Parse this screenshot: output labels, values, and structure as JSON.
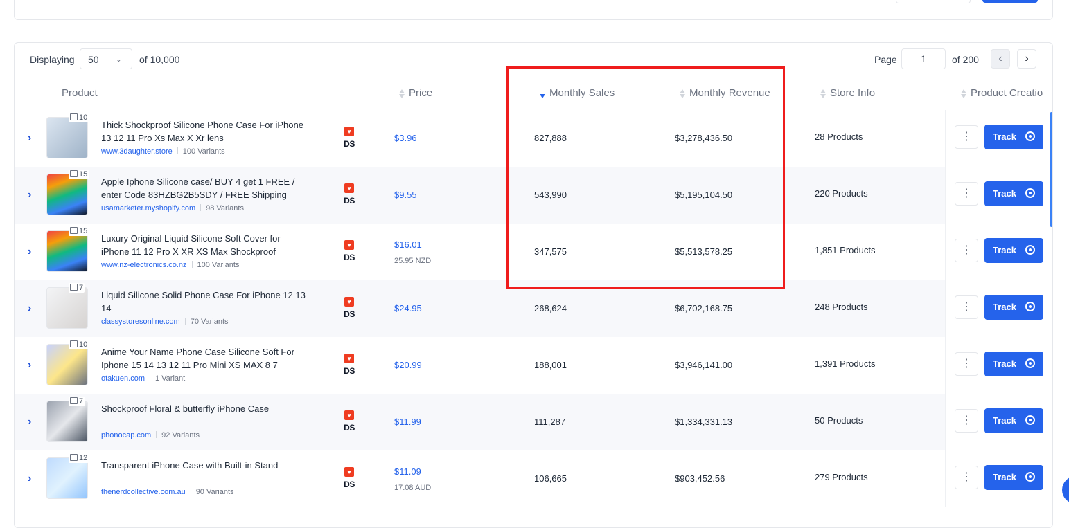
{
  "toolbar": {
    "displaying_label": "Displaying",
    "page_size": "50",
    "of_total": "of 10,000",
    "page_label": "Page",
    "page_value": "1",
    "of_pages": "of 200"
  },
  "columns": {
    "product": "Product",
    "price": "Price",
    "monthly_sales": "Monthly Sales",
    "monthly_revenue": "Monthly Revenue",
    "store_info": "Store Info",
    "product_creation": "Product Creatio"
  },
  "track_label": "Track",
  "source_badges": {
    "ds": "DS"
  },
  "rows": [
    {
      "title": "Thick Shockproof Silicone Phone Case For iPhone 13 12 11 Pro Xs Max X Xr lens",
      "store": "www.3daughter.store",
      "variants": "100 Variants",
      "image_count": "10",
      "price": "$3.96",
      "price_sub": "",
      "sales": "827,888",
      "revenue": "$3,278,436.50",
      "store_info": "28 Products"
    },
    {
      "title": "Apple Iphone Silicone case/ BUY 4 get 1 FREE / enter Code 83HZBG2B5SDY / FREE Shipping",
      "store": "usamarketer.myshopify.com",
      "variants": "98 Variants",
      "image_count": "15",
      "price": "$9.55",
      "price_sub": "",
      "sales": "543,990",
      "revenue": "$5,195,104.50",
      "store_info": "220 Products"
    },
    {
      "title": "Luxury Original Liquid Silicone Soft Cover for iPhone 11 12 Pro X XR XS Max Shockproof",
      "store": "www.nz-electronics.co.nz",
      "variants": "100 Variants",
      "image_count": "15",
      "price": "$16.01",
      "price_sub": "25.95 NZD",
      "sales": "347,575",
      "revenue": "$5,513,578.25",
      "store_info": "1,851 Products"
    },
    {
      "title": "Liquid Silicone Solid Phone Case For iPhone 12 13 14",
      "store": "classystoresonline.com",
      "variants": "70 Variants",
      "image_count": "7",
      "price": "$24.95",
      "price_sub": "",
      "sales": "268,624",
      "revenue": "$6,702,168.75",
      "store_info": "248 Products"
    },
    {
      "title": "Anime Your Name Phone Case Silicone Soft For Iphone 15 14 13 12 11 Pro Mini XS MAX 8 7",
      "store": "otakuen.com",
      "variants": "1 Variant",
      "image_count": "10",
      "price": "$20.99",
      "price_sub": "",
      "sales": "188,001",
      "revenue": "$3,946,141.00",
      "store_info": "1,391 Products"
    },
    {
      "title": "Shockproof Floral & butterfly iPhone Case",
      "store": "phonocap.com",
      "variants": "92 Variants",
      "image_count": "7",
      "price": "$11.99",
      "price_sub": "",
      "sales": "111,287",
      "revenue": "$1,334,331.13",
      "store_info": "50 Products"
    },
    {
      "title": "Transparent iPhone Case with Built-in Stand",
      "store": "thenerdcollective.com.au",
      "variants": "90 Variants",
      "image_count": "12",
      "price": "$11.09",
      "price_sub": "17.08 AUD",
      "sales": "106,665",
      "revenue": "$903,452.56",
      "store_info": "279 Products"
    }
  ]
}
